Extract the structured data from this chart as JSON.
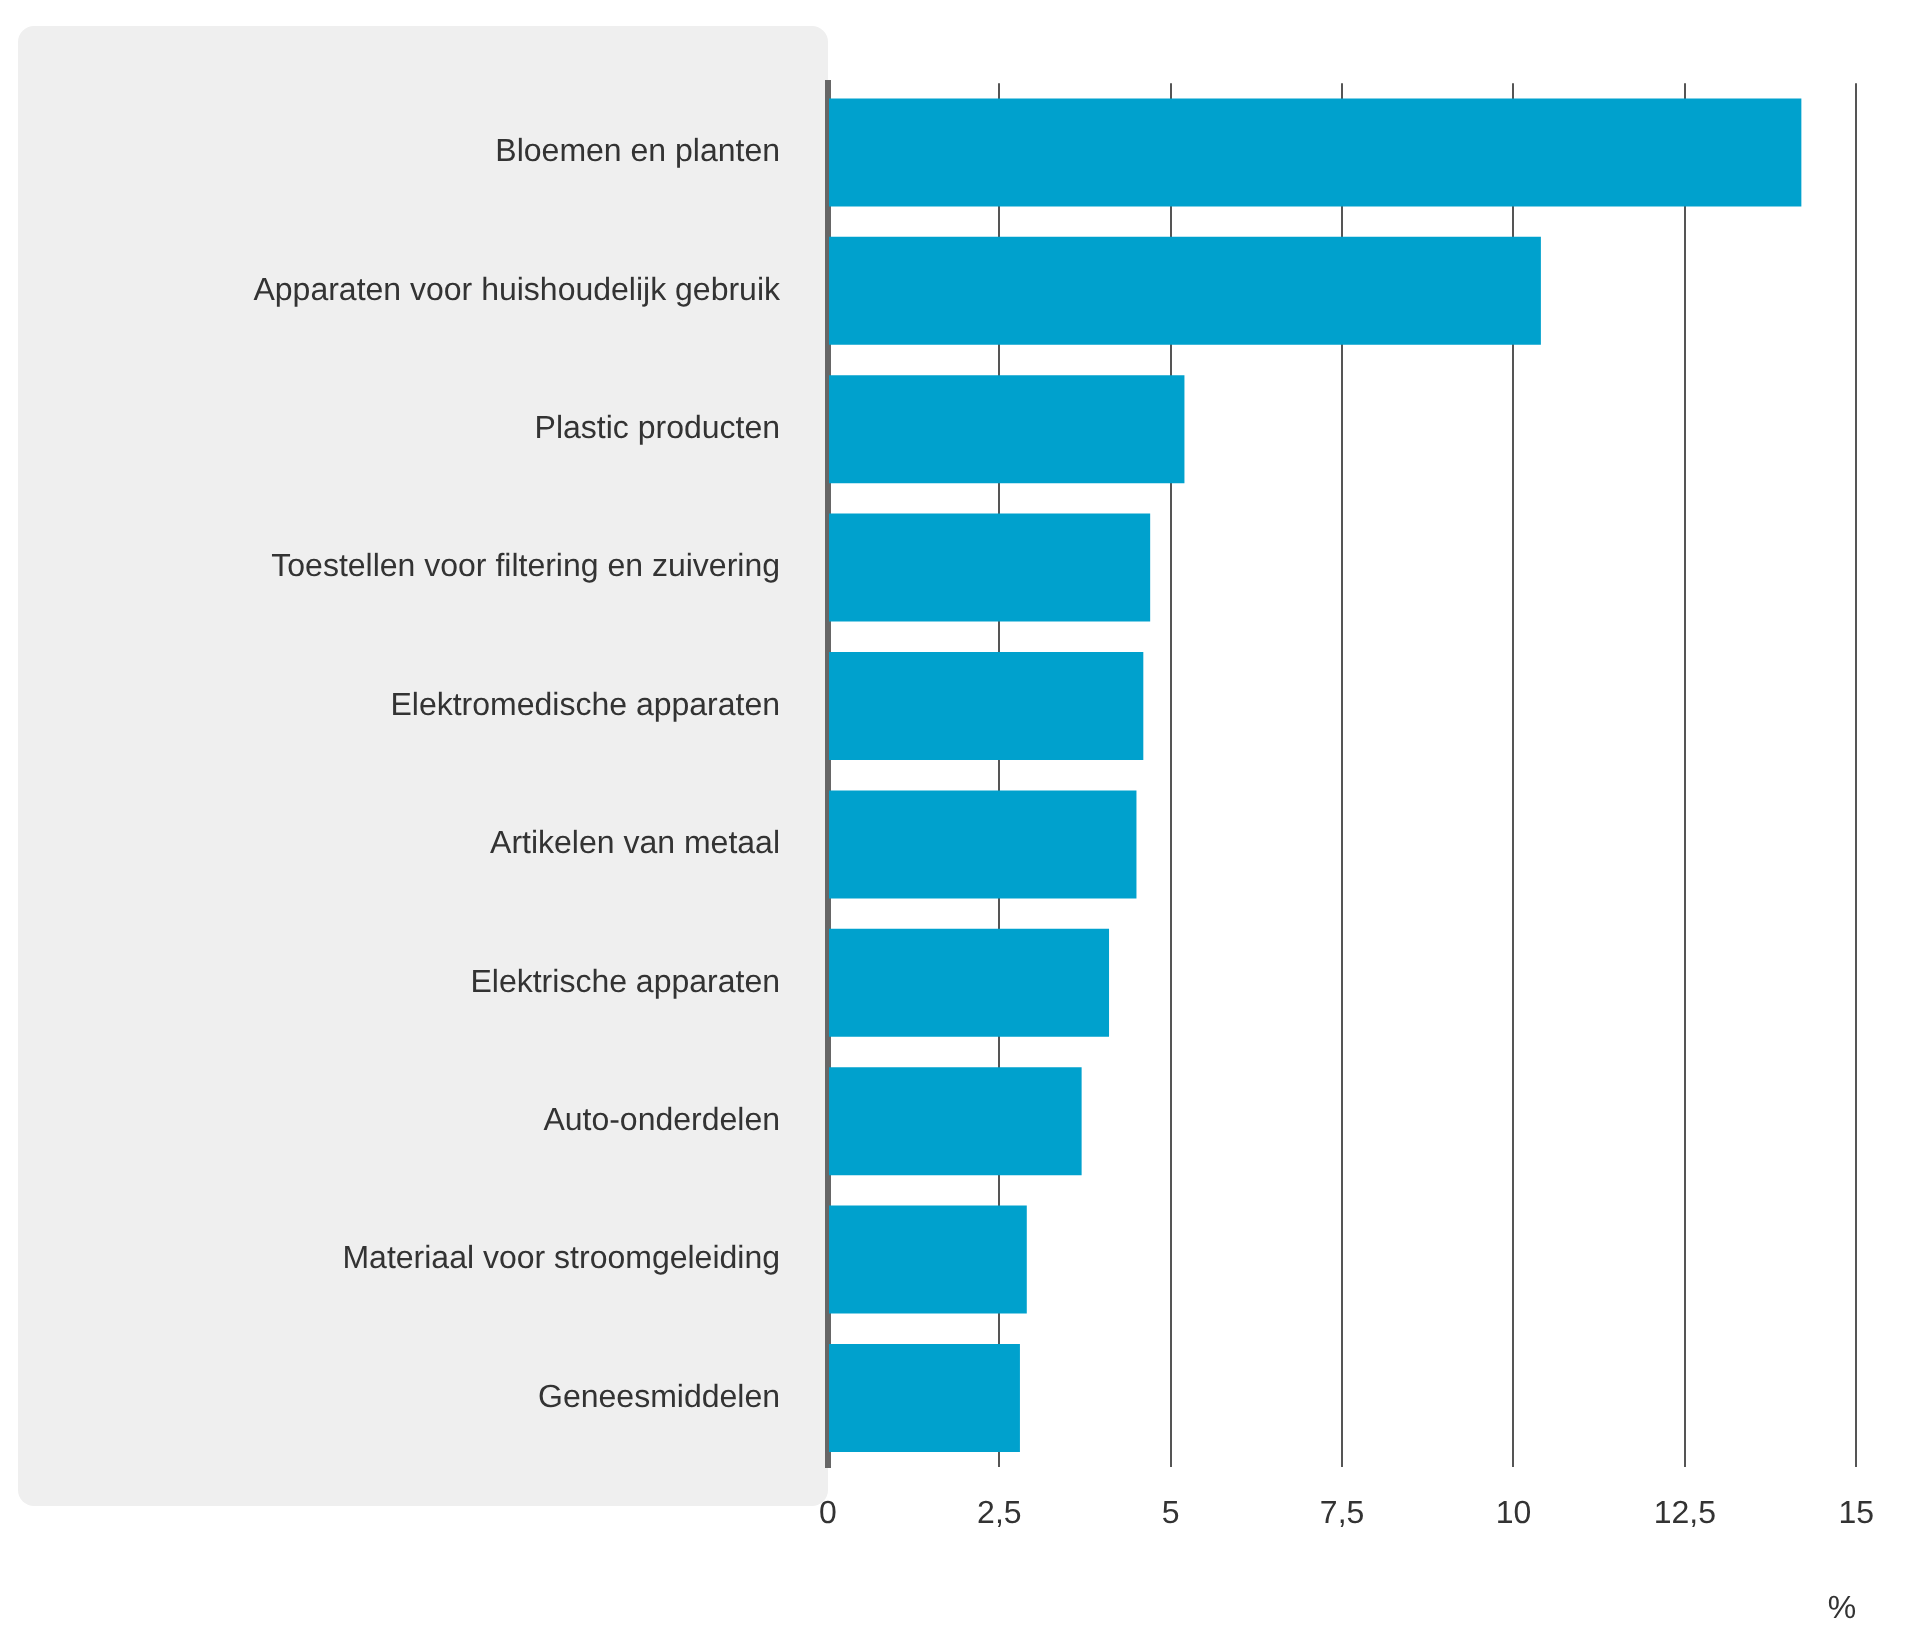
{
  "chart_data": {
    "type": "bar",
    "orientation": "horizontal",
    "xlabel": "%",
    "categories": [
      "Bloemen en planten",
      "Apparaten voor huishoudelijk gebruik",
      "Plastic producten",
      "Toestellen voor filtering en zuivering",
      "Elektromedische apparaten",
      "Artikelen van metaal",
      "Elektrische apparaten",
      "Auto-onderdelen",
      "Materiaal voor stroomgeleiding",
      "Geneesmiddelen"
    ],
    "values": [
      14.2,
      10.4,
      5.2,
      4.7,
      4.6,
      4.5,
      4.1,
      3.7,
      2.9,
      2.8
    ],
    "color": "#00a1cd",
    "xlim": [
      0,
      15
    ],
    "xticks": [
      0,
      {
        "value": 2.5,
        "label": "2,5"
      },
      5,
      {
        "value": 7.5,
        "label": "7,5"
      },
      10,
      {
        "value": 12.5,
        "label": "12,5"
      },
      15
    ],
    "grid": "x",
    "legend": false
  }
}
